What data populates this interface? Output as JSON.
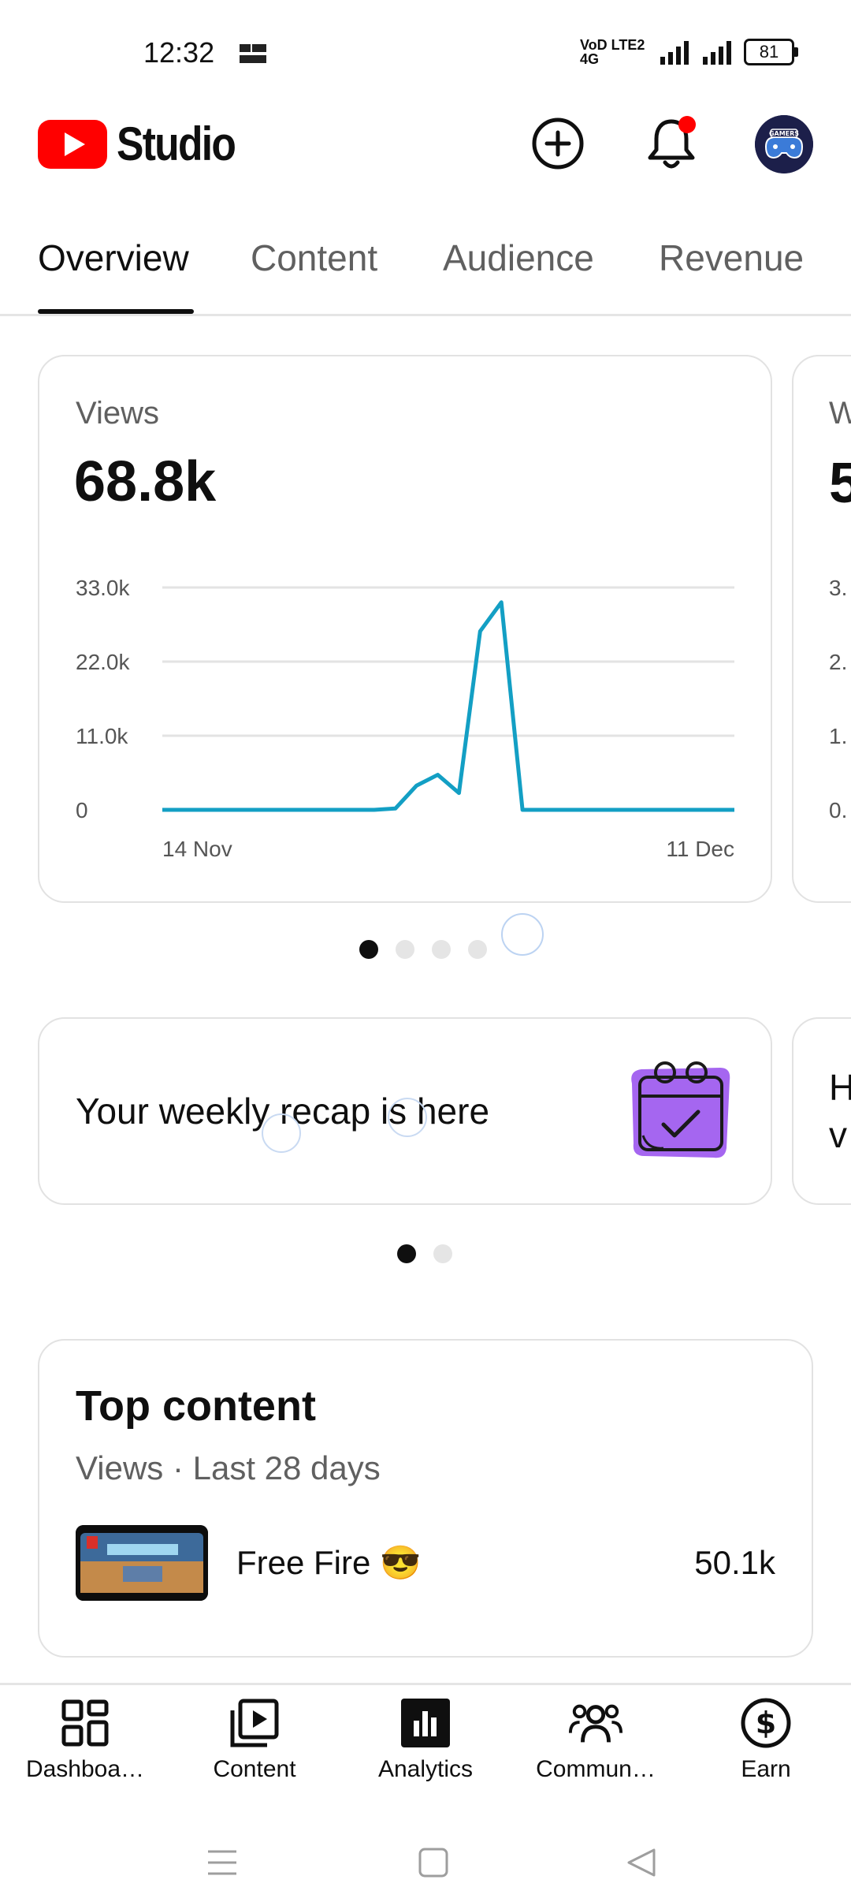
{
  "status": {
    "time": "12:32",
    "network": "VoD LTE2 4G",
    "battery": "81"
  },
  "header": {
    "app_name": "Studio",
    "create_label": "Create",
    "notifications_label": "Notifications",
    "avatar_text": "GAMERS"
  },
  "tabs": [
    {
      "label": "Overview",
      "active": true
    },
    {
      "label": "Content"
    },
    {
      "label": "Audience"
    },
    {
      "label": "Revenue"
    }
  ],
  "views_card": {
    "label": "Views",
    "value": "68.8k",
    "peek_label": "W",
    "peek_value": "5",
    "peek_ticks": [
      "3.",
      "2.",
      "1.",
      "0."
    ]
  },
  "chart_data": {
    "type": "line",
    "title": "",
    "xlabel": "",
    "ylabel": "",
    "x_start_label": "14 Nov",
    "x_end_label": "11 Dec",
    "y_ticks": [
      "0",
      "11.0k",
      "22.0k",
      "33.0k"
    ],
    "ylim": [
      0,
      33000
    ],
    "x": [
      "14 Nov",
      "15 Nov",
      "16 Nov",
      "17 Nov",
      "18 Nov",
      "19 Nov",
      "20 Nov",
      "21 Nov",
      "22 Nov",
      "23 Nov",
      "24 Nov",
      "25 Nov",
      "26 Nov",
      "27 Nov",
      "28 Nov",
      "29 Nov",
      "30 Nov",
      "1 Dec",
      "2 Dec",
      "3 Dec",
      "4 Dec",
      "5 Dec",
      "6 Dec",
      "7 Dec",
      "8 Dec",
      "9 Dec",
      "10 Dec",
      "11 Dec"
    ],
    "values": [
      0,
      0,
      0,
      0,
      0,
      0,
      0,
      0,
      0,
      0,
      0,
      200,
      3600,
      5200,
      2500,
      26500,
      30800,
      0,
      0,
      0,
      0,
      0,
      0,
      0,
      0,
      0,
      0,
      0
    ],
    "color": "#139fc4"
  },
  "carousel1": {
    "count": 4,
    "active": 0
  },
  "recap": {
    "text": "Your weekly recap is here",
    "peek_line1": "H",
    "peek_line2": "v"
  },
  "carousel2": {
    "count": 2,
    "active": 0
  },
  "top_content": {
    "title": "Top content",
    "subtitle": "Views · Last 28 days",
    "items": [
      {
        "title": "Free Fire 😎",
        "views": "50.1k"
      }
    ]
  },
  "bottom_nav": [
    {
      "label": "Dashboa…",
      "icon": "dashboard-icon"
    },
    {
      "label": "Content",
      "icon": "content-icon"
    },
    {
      "label": "Analytics",
      "icon": "analytics-icon",
      "active": true
    },
    {
      "label": "Commun…",
      "icon": "community-icon"
    },
    {
      "label": "Earn",
      "icon": "earn-icon"
    }
  ],
  "colors": {
    "brand_red": "#ff0000",
    "chart_line": "#139fc4",
    "notification_dot": "#ff0000"
  }
}
